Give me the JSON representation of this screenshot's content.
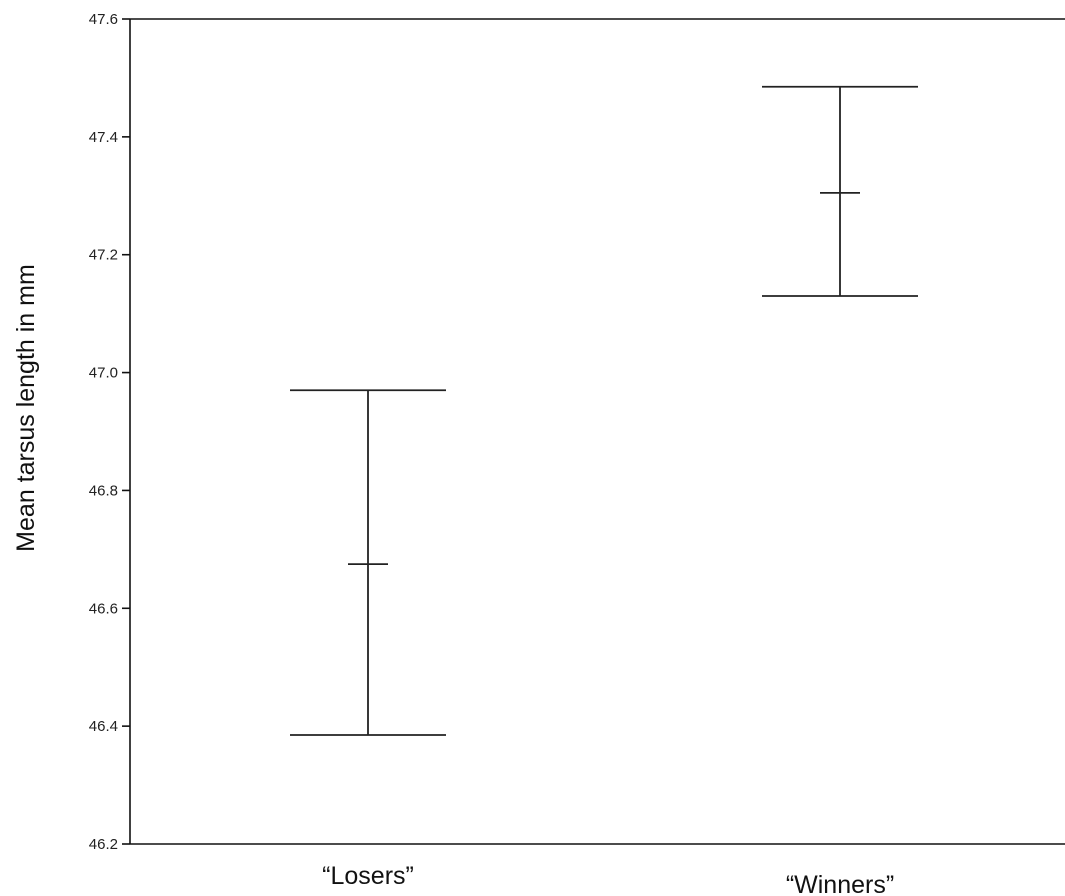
{
  "chart_data": {
    "type": "errorbar",
    "title": "",
    "xlabel": "",
    "ylabel": "Mean tarsus length in mm",
    "ylim": [
      46.2,
      47.6
    ],
    "yticks": [
      "46.2",
      "46.4",
      "46.6",
      "46.8",
      "47.0",
      "47.2",
      "47.4",
      "47.6"
    ],
    "categories": [
      "“Losers”",
      "“Winners”"
    ],
    "points": [
      {
        "category": "“Losers”",
        "mean": 46.675,
        "lower": 46.385,
        "upper": 46.97
      },
      {
        "category": "“Winners”",
        "mean": 47.305,
        "lower": 47.13,
        "upper": 47.485
      }
    ],
    "grid": false,
    "legend": "none"
  }
}
